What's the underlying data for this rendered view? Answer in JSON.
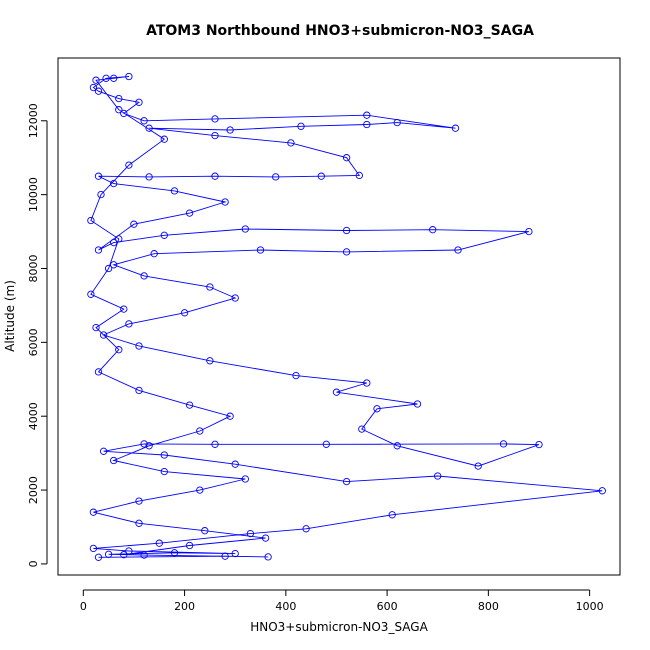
{
  "chart_data": {
    "type": "scatter",
    "title": "ATOM3 Northbound HNO3+submicron-NO3_SAGA",
    "xlabel": "HNO3+submicron-NO3_SAGA",
    "ylabel": "Altitude (m)",
    "xlim": [
      -50,
      1060
    ],
    "ylim": [
      -300,
      13700
    ],
    "x_ticks": [
      0,
      200,
      400,
      600,
      800,
      1000
    ],
    "y_ticks": [
      0,
      2000,
      4000,
      6000,
      8000,
      10000,
      12000
    ],
    "grid": false,
    "legend": "none",
    "series_color": "#0000ff",
    "marker": "open-circle",
    "connect_points": true,
    "series": [
      {
        "points": [
          [
            30,
            180
          ],
          [
            280,
            210
          ],
          [
            365,
            190
          ],
          [
            120,
            240
          ],
          [
            50,
            260
          ],
          [
            180,
            300
          ],
          [
            300,
            280
          ],
          [
            90,
            350
          ],
          [
            20,
            420
          ],
          [
            150,
            560
          ],
          [
            330,
            820
          ],
          [
            440,
            950
          ],
          [
            610,
            1330
          ],
          [
            1025,
            1980
          ],
          [
            700,
            2380
          ],
          [
            520,
            2230
          ],
          [
            300,
            2700
          ],
          [
            160,
            2950
          ],
          [
            40,
            3050
          ],
          [
            120,
            3250
          ],
          [
            260,
            3240
          ],
          [
            480,
            3240
          ],
          [
            830,
            3250
          ],
          [
            900,
            3230
          ],
          [
            780,
            2650
          ],
          [
            620,
            3200
          ],
          [
            550,
            3650
          ],
          [
            580,
            4200
          ],
          [
            660,
            4330
          ],
          [
            500,
            4650
          ],
          [
            560,
            4900
          ],
          [
            420,
            5100
          ],
          [
            250,
            5500
          ],
          [
            110,
            5900
          ],
          [
            40,
            6200
          ],
          [
            90,
            6500
          ],
          [
            200,
            6800
          ],
          [
            300,
            7200
          ],
          [
            250,
            7500
          ],
          [
            120,
            7800
          ],
          [
            60,
            8100
          ],
          [
            140,
            8400
          ],
          [
            350,
            8500
          ],
          [
            520,
            8450
          ],
          [
            740,
            8500
          ],
          [
            880,
            9000
          ],
          [
            690,
            9050
          ],
          [
            520,
            9030
          ],
          [
            320,
            9070
          ],
          [
            160,
            8900
          ],
          [
            60,
            8700
          ],
          [
            30,
            8500
          ],
          [
            100,
            9200
          ],
          [
            210,
            9500
          ],
          [
            280,
            9800
          ],
          [
            180,
            10100
          ],
          [
            60,
            10300
          ],
          [
            30,
            10500
          ],
          [
            130,
            10480
          ],
          [
            260,
            10500
          ],
          [
            380,
            10480
          ],
          [
            470,
            10500
          ],
          [
            545,
            10520
          ],
          [
            520,
            11000
          ],
          [
            410,
            11400
          ],
          [
            260,
            11600
          ],
          [
            130,
            11800
          ],
          [
            290,
            11750
          ],
          [
            430,
            11850
          ],
          [
            560,
            11900
          ],
          [
            620,
            11950
          ],
          [
            735,
            11800
          ],
          [
            560,
            12150
          ],
          [
            260,
            12050
          ],
          [
            120,
            12000
          ],
          [
            80,
            12200
          ],
          [
            110,
            12500
          ],
          [
            70,
            12600
          ],
          [
            30,
            12800
          ],
          [
            20,
            12900
          ],
          [
            45,
            13150
          ],
          [
            90,
            13200
          ],
          [
            60,
            13150
          ],
          [
            25,
            13100
          ],
          [
            70,
            12300
          ],
          [
            160,
            11500
          ],
          [
            90,
            10800
          ],
          [
            35,
            10000
          ],
          [
            15,
            9300
          ],
          [
            70,
            8800
          ],
          [
            50,
            8000
          ],
          [
            15,
            7300
          ],
          [
            80,
            6900
          ],
          [
            25,
            6400
          ],
          [
            70,
            5800
          ],
          [
            30,
            5200
          ],
          [
            110,
            4700
          ],
          [
            210,
            4300
          ],
          [
            290,
            4000
          ],
          [
            230,
            3600
          ],
          [
            130,
            3200
          ],
          [
            60,
            2800
          ],
          [
            160,
            2500
          ],
          [
            320,
            2300
          ],
          [
            230,
            2000
          ],
          [
            110,
            1700
          ],
          [
            20,
            1400
          ],
          [
            110,
            1100
          ],
          [
            240,
            900
          ],
          [
            360,
            700
          ],
          [
            210,
            500
          ],
          [
            80,
            250
          ]
        ]
      }
    ]
  }
}
